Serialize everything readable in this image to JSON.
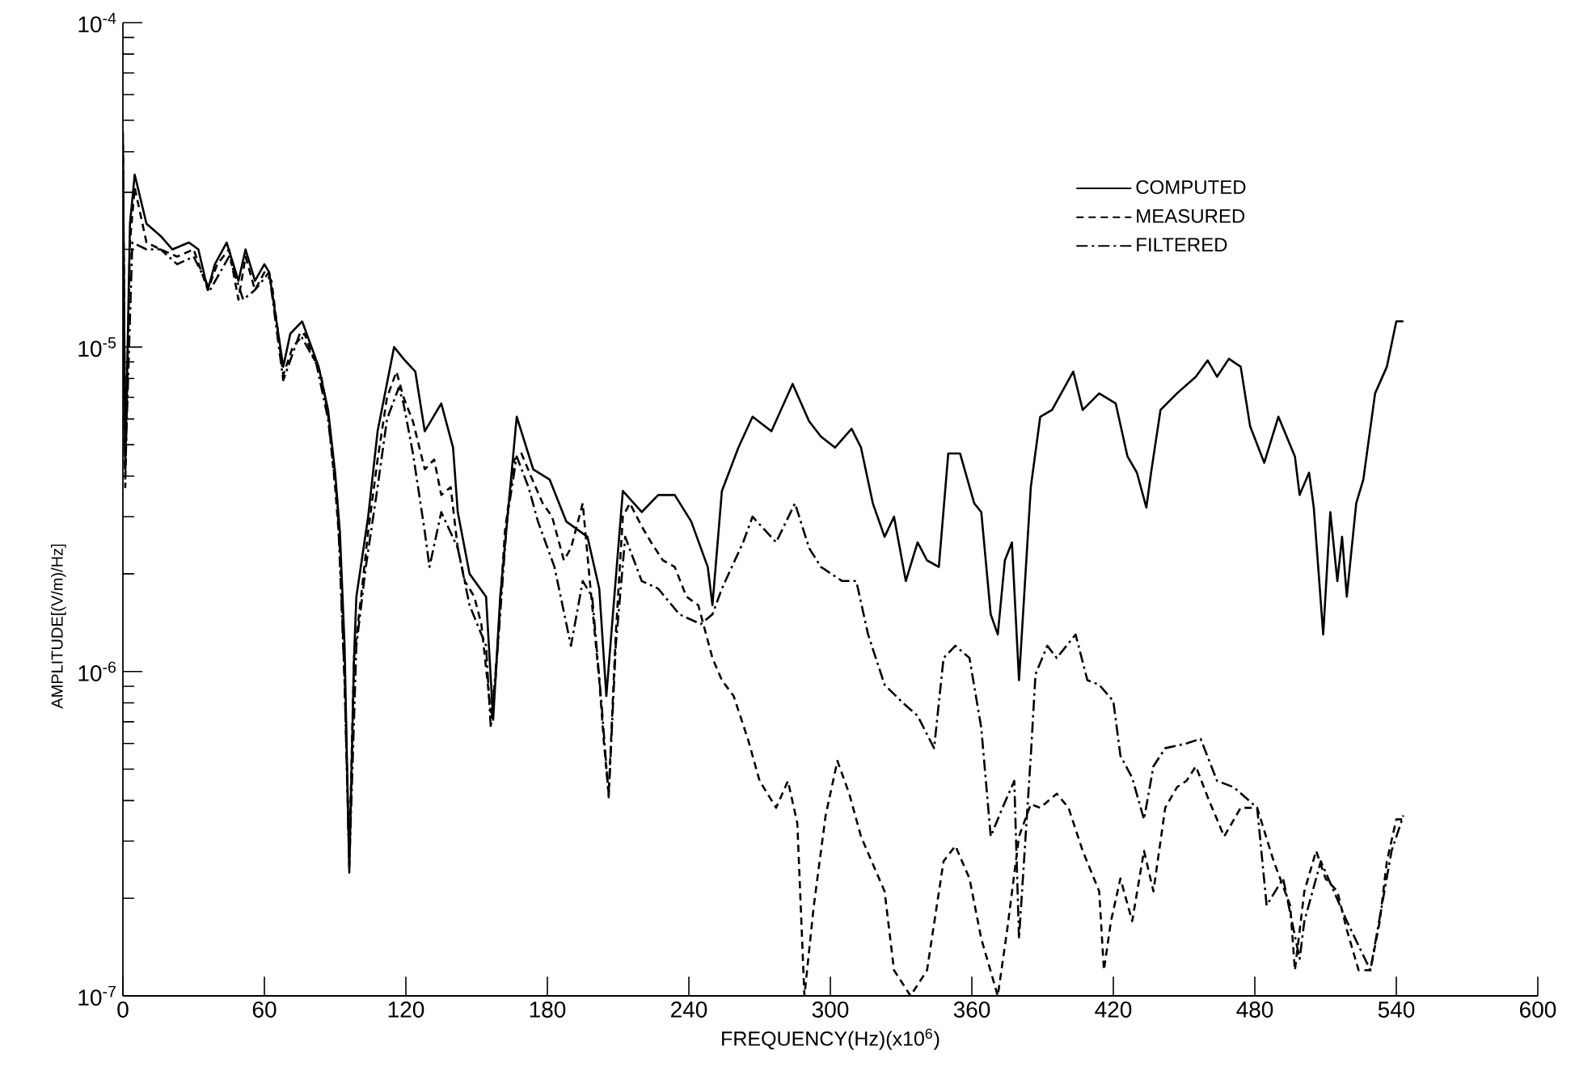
{
  "chart_data": {
    "type": "line",
    "xlabel": "FREQUENCY(Hz)(x10$^{6}$)",
    "ylabel": "AMPLITUDE[(V/m)/Hz]",
    "xlim": [
      0,
      600
    ],
    "ylim": [
      1e-07,
      0.0001
    ],
    "log": "y",
    "legend": "top right",
    "xticks": [
      0,
      60,
      120,
      180,
      240,
      300,
      360,
      420,
      480,
      540,
      600
    ],
    "yticks": [
      {
        "value": 1e-07,
        "label": "10$^{-7}$"
      },
      {
        "value": 2e-07,
        "label": null
      },
      {
        "value": 3e-07,
        "label": null
      },
      {
        "value": 4e-07,
        "label": null
      },
      {
        "value": 5e-07,
        "label": null
      },
      {
        "value": 6e-07,
        "label": null
      },
      {
        "value": 7e-07,
        "label": null
      },
      {
        "value": 8e-07,
        "label": null
      },
      {
        "value": 9e-07,
        "label": null
      },
      {
        "value": 1e-06,
        "label": "10$^{-6}$"
      },
      {
        "value": 2e-06,
        "label": null
      },
      {
        "value": 3e-06,
        "label": null
      },
      {
        "value": 4e-06,
        "label": null
      },
      {
        "value": 5e-06,
        "label": null
      },
      {
        "value": 6e-06,
        "label": null
      },
      {
        "value": 7e-06,
        "label": null
      },
      {
        "value": 8e-06,
        "label": null
      },
      {
        "value": 9e-06,
        "label": null
      },
      {
        "value": 1e-05,
        "label": "10$^{-5}$"
      },
      {
        "value": 2e-05,
        "label": null
      },
      {
        "value": 3e-05,
        "label": null
      },
      {
        "value": 4e-05,
        "label": null
      },
      {
        "value": 5e-05,
        "label": null
      },
      {
        "value": 6e-05,
        "label": null
      },
      {
        "value": 7e-05,
        "label": null
      },
      {
        "value": 8e-05,
        "label": null
      },
      {
        "value": 9e-05,
        "label": null
      },
      {
        "value": 0.0001,
        "label": "10$^{-4}$"
      }
    ],
    "series": [
      {
        "name": "COMPUTED",
        "color": "#000000",
        "line_style": "solid",
        "x": [
          0,
          1,
          3,
          5,
          10,
          16,
          21,
          28,
          32,
          36,
          39,
          44,
          49,
          52,
          56,
          60,
          62,
          68,
          71,
          76,
          80,
          83,
          87,
          90,
          92,
          94,
          96,
          98,
          99,
          104,
          108,
          115,
          119,
          124,
          128,
          135,
          140,
          142,
          147,
          154,
          157,
          160,
          167,
          174,
          181,
          188,
          197,
          202,
          205,
          212,
          220,
          227,
          234,
          241,
          248,
          250,
          254,
          261,
          267,
          275,
          284,
          291,
          296,
          302,
          309,
          313,
          318,
          323,
          327,
          332,
          337,
          341,
          346,
          350,
          355,
          361,
          364,
          368,
          371,
          374,
          377,
          380,
          385,
          389,
          394,
          403,
          407,
          414,
          421,
          426,
          430,
          434,
          436,
          440,
          447,
          455,
          460,
          464,
          469,
          474,
          478,
          484,
          490,
          497,
          499,
          503,
          505,
          509,
          512,
          515,
          517,
          519,
          523,
          526,
          531,
          536,
          540,
          543
        ],
        "values": [
          4.6e-05,
          4.2e-06,
          2.4e-05,
          3.4e-05,
          2.4e-05,
          2.2e-05,
          2e-05,
          2.1e-05,
          2e-05,
          1.5e-05,
          1.8e-05,
          2.1e-05,
          1.6e-05,
          2e-05,
          1.6e-05,
          1.8e-05,
          1.7e-05,
          8.7e-06,
          1.1e-05,
          1.2e-05,
          1e-05,
          8.7e-06,
          6.4e-06,
          4.1e-06,
          2.7e-06,
          1.2e-06,
          2.4e-07,
          1.1e-06,
          1.7e-06,
          3e-06,
          5.5e-06,
          1e-05,
          9.2e-06,
          8.4e-06,
          5.5e-06,
          6.7e-06,
          4.9e-06,
          3.1e-06,
          2e-06,
          1.7e-06,
          7.1e-07,
          1.7e-06,
          6.1e-06,
          4.2e-06,
          3.9e-06,
          2.9e-06,
          2.6e-06,
          1.8e-06,
          8.4e-07,
          3.6e-06,
          3.1e-06,
          3.5e-06,
          3.5e-06,
          2.9e-06,
          2.1e-06,
          1.6e-06,
          3.6e-06,
          4.9e-06,
          6.1e-06,
          5.5e-06,
          7.7e-06,
          5.9e-06,
          5.3e-06,
          4.9e-06,
          5.6e-06,
          4.9e-06,
          3.3e-06,
          2.6e-06,
          3e-06,
          1.9e-06,
          2.5e-06,
          2.2e-06,
          2.1e-06,
          4.7e-06,
          4.7e-06,
          3.3e-06,
          3.1e-06,
          1.5e-06,
          1.3e-06,
          2.2e-06,
          2.5e-06,
          9.4e-07,
          3.7e-06,
          6.1e-06,
          6.4e-06,
          8.4e-06,
          6.4e-06,
          7.2e-06,
          6.7e-06,
          4.6e-06,
          4.1e-06,
          3.2e-06,
          4.1e-06,
          6.4e-06,
          7.2e-06,
          8.1e-06,
          9.1e-06,
          8.1e-06,
          9.2e-06,
          8.7e-06,
          5.7e-06,
          4.4e-06,
          6.1e-06,
          4.6e-06,
          3.5e-06,
          4.1e-06,
          3.2e-06,
          1.3e-06,
          3.1e-06,
          1.9e-06,
          2.6e-06,
          1.7e-06,
          3.3e-06,
          3.9e-06,
          7.2e-06,
          8.7e-06,
          1.2e-05,
          1.2e-05
        ]
      },
      {
        "name": "MEASURED",
        "color": "#000000",
        "line_style": "dashed",
        "x": [
          0,
          1,
          3,
          5,
          10,
          16,
          23,
          30,
          36,
          40,
          45,
          49,
          52,
          56,
          60,
          63,
          68,
          72,
          77,
          80,
          84,
          87,
          90,
          92,
          94,
          96,
          98,
          101,
          104,
          108,
          112,
          116,
          119,
          123,
          128,
          132,
          135,
          139,
          142,
          145,
          149,
          152,
          156,
          158,
          162,
          166,
          169,
          173,
          178,
          182,
          187,
          190,
          195,
          198,
          202,
          204,
          206,
          209,
          212,
          215,
          220,
          224,
          229,
          234,
          239,
          244,
          250,
          254,
          259,
          265,
          270,
          277,
          282,
          286,
          289,
          293,
          298,
          303,
          308,
          313,
          323,
          327,
          334,
          341,
          348,
          353,
          359,
          364,
          371,
          375,
          380,
          385,
          389,
          396,
          401,
          407,
          414,
          416,
          419,
          423,
          428,
          433,
          437,
          442,
          447,
          451,
          455,
          460,
          467,
          474,
          481,
          488,
          495,
          497,
          501,
          506,
          510,
          515,
          519,
          524,
          529,
          533,
          536,
          540,
          543
        ],
        "values": [
          4.2e-05,
          3.7e-06,
          2.1e-05,
          3.1e-05,
          2.1e-05,
          2e-05,
          1.9e-05,
          2e-05,
          1.5e-05,
          1.8e-05,
          2e-05,
          1.4e-05,
          1.9e-05,
          1.5e-05,
          1.7e-05,
          1.6e-05,
          8.2e-06,
          1e-05,
          1.1e-05,
          9.6e-06,
          8.2e-06,
          6.2e-06,
          3.7e-06,
          2.4e-06,
          9.4e-07,
          2.7e-07,
          1.1e-06,
          1.7e-06,
          2.7e-06,
          4.5e-06,
          7e-06,
          8.4e-06,
          7e-06,
          5.9e-06,
          4.2e-06,
          4.5e-06,
          3.5e-06,
          3.7e-06,
          2.4e-06,
          1.9e-06,
          1.7e-06,
          1.4e-06,
          7.5e-07,
          9.4e-07,
          2.7e-06,
          4.5e-06,
          4.7e-06,
          4e-06,
          3.3e-06,
          3e-06,
          2.2e-06,
          2.4e-06,
          3.3e-06,
          1.9e-06,
          9.4e-07,
          6e-07,
          4.2e-07,
          1.3e-06,
          3e-06,
          3.3e-06,
          2.8e-06,
          2.5e-06,
          2.2e-06,
          2.1e-06,
          1.7e-06,
          1.6e-06,
          1.1e-06,
          9.4e-07,
          8.4e-07,
          6.2e-07,
          4.6e-07,
          3.8e-07,
          4.6e-07,
          3.4e-07,
          1e-07,
          1.9e-07,
          3.6e-07,
          5.3e-07,
          4.2e-07,
          3.1e-07,
          2.1e-07,
          1.2e-07,
          1e-07,
          1.2e-07,
          2.6e-07,
          2.9e-07,
          2.3e-07,
          1.5e-07,
          1e-07,
          1.6e-07,
          3.1e-07,
          3.9e-07,
          3.8e-07,
          4.2e-07,
          3.8e-07,
          2.8e-07,
          2.1e-07,
          1.2e-07,
          1.7e-07,
          2.3e-07,
          1.7e-07,
          2.8e-07,
          2.1e-07,
          3.8e-07,
          4.4e-07,
          4.6e-07,
          5.1e-07,
          4.1e-07,
          3.1e-07,
          3.8e-07,
          3.8e-07,
          2.6e-07,
          1.9e-07,
          1.2e-07,
          2.1e-07,
          2.8e-07,
          2.3e-07,
          2.1e-07,
          1.6e-07,
          1.2e-07,
          1.2e-07,
          1.7e-07,
          2.6e-07,
          3.5e-07,
          3.5e-07
        ]
      },
      {
        "name": "FILTERED",
        "color": "#000000",
        "line_style": "dashdot",
        "x": [
          0,
          1,
          4,
          10,
          16,
          23,
          30,
          37,
          45,
          51,
          56,
          62,
          68,
          75,
          82,
          87,
          91,
          94,
          96,
          99,
          103,
          108,
          112,
          117,
          119,
          123,
          128,
          130,
          135,
          142,
          147,
          154,
          156,
          159,
          163,
          167,
          172,
          176,
          183,
          190,
          195,
          199,
          203,
          206,
          209,
          213,
          220,
          227,
          236,
          245,
          250,
          254,
          263,
          267,
          277,
          285,
          291,
          296,
          305,
          311,
          316,
          323,
          330,
          337,
          344,
          348,
          353,
          359,
          364,
          368,
          373,
          378,
          380,
          385,
          387,
          392,
          396,
          404,
          409,
          414,
          420,
          423,
          428,
          433,
          437,
          442,
          451,
          457,
          464,
          471,
          481,
          485,
          492,
          499,
          501,
          508,
          519,
          529,
          538,
          543
        ],
        "values": [
          3.9e-05,
          4.2e-06,
          2.1e-05,
          2e-05,
          2e-05,
          1.8e-05,
          1.9e-05,
          1.5e-05,
          1.9e-05,
          1.4e-05,
          1.5e-05,
          1.7e-05,
          7.9e-06,
          1.1e-05,
          8.9e-06,
          6e-06,
          3.3e-06,
          9.4e-07,
          2.5e-07,
          1.2e-06,
          2.1e-06,
          3.7e-06,
          6e-06,
          7.5e-06,
          6.7e-06,
          4.7e-06,
          2.7e-06,
          2.1e-06,
          3.1e-06,
          2.4e-06,
          1.6e-06,
          1.2e-06,
          6.7e-07,
          1.2e-06,
          3e-06,
          4.6e-06,
          3.7e-06,
          2.9e-06,
          2.1e-06,
          1.2e-06,
          1.9e-06,
          1.7e-06,
          7.9e-07,
          4.1e-07,
          1.2e-06,
          2.6e-06,
          1.9e-06,
          1.8e-06,
          1.5e-06,
          1.4e-06,
          1.5e-06,
          1.8e-06,
          2.5e-06,
          3e-06,
          2.5e-06,
          3.3e-06,
          2.4e-06,
          2.1e-06,
          1.9e-06,
          1.9e-06,
          1.3e-06,
          9.1e-07,
          8.1e-07,
          7.3e-07,
          5.8e-07,
          1.1e-06,
          1.2e-06,
          1.1e-06,
          6.7e-07,
          3.1e-07,
          3.8e-07,
          4.6e-07,
          1.5e-07,
          5.5e-07,
          9.8e-07,
          1.2e-06,
          1.1e-06,
          1.3e-06,
          9.4e-07,
          9.1e-07,
          8.1e-07,
          5.5e-07,
          4.7e-07,
          3.5e-07,
          5.1e-07,
          5.8e-07,
          6e-07,
          6.2e-07,
          4.6e-07,
          4.4e-07,
          3.8e-07,
          1.9e-07,
          2.3e-07,
          1.3e-07,
          1.7e-07,
          2.6e-07,
          1.7e-07,
          1.2e-07,
          2.8e-07,
          3.6e-07
        ]
      }
    ]
  }
}
